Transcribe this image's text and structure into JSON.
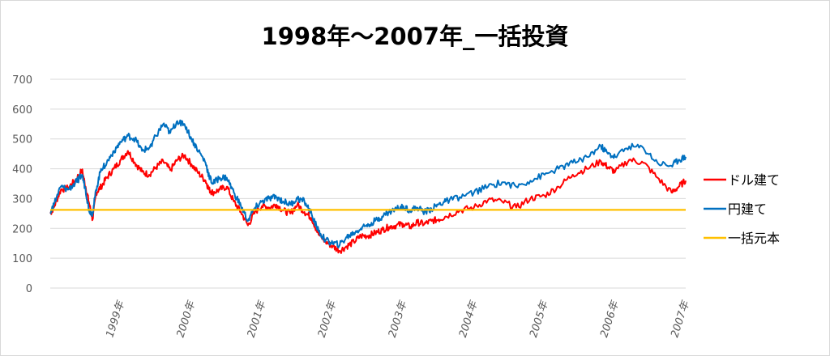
{
  "chart_data": {
    "type": "line",
    "title": "1998年～2007年_一括投資",
    "xlabel": "",
    "ylabel": "",
    "ylim": [
      0,
      700
    ],
    "yticks": [
      0,
      100,
      200,
      300,
      400,
      500,
      600,
      700
    ],
    "xlim": [
      1998.0,
      2007.0
    ],
    "x_tick_labels": [
      {
        "x": 1999.0,
        "label": "1999年"
      },
      {
        "x": 2000.0,
        "label": "2000年"
      },
      {
        "x": 2001.0,
        "label": "2001年"
      },
      {
        "x": 2002.0,
        "label": "2002年"
      },
      {
        "x": 2003.0,
        "label": "2003年"
      },
      {
        "x": 2004.0,
        "label": "2004年"
      },
      {
        "x": 2005.0,
        "label": "2005年"
      },
      {
        "x": 2006.0,
        "label": "2006年"
      },
      {
        "x": 2007.0,
        "label": "2007年"
      }
    ],
    "grid": "horizontal",
    "legend_position": "right",
    "series": [
      {
        "name": "ドル建て",
        "color": "#ff0000",
        "x": [
          1998.0,
          1998.05,
          1998.15,
          1998.25,
          1998.35,
          1998.45,
          1998.5,
          1998.55,
          1998.6,
          1998.65,
          1998.72,
          1998.8,
          1998.9,
          1999.0,
          1999.1,
          1999.2,
          1999.3,
          1999.4,
          1999.5,
          1999.6,
          1999.7,
          1999.8,
          1999.9,
          2000.0,
          2000.1,
          2000.2,
          2000.25,
          2000.3,
          2000.4,
          2000.5,
          2000.6,
          2000.7,
          2000.8,
          2000.9,
          2001.0,
          2001.1,
          2001.2,
          2001.3,
          2001.4,
          2001.5,
          2001.6,
          2001.7,
          2001.8,
          2001.9,
          2002.0,
          2002.1,
          2002.2,
          2002.3,
          2002.4,
          2002.5,
          2002.6,
          2002.7,
          2002.8,
          2002.9,
          2003.0,
          2003.1,
          2003.2,
          2003.3,
          2003.4,
          2003.5,
          2003.6,
          2003.8,
          2004.0,
          2004.2,
          2004.4,
          2004.6,
          2004.8,
          2005.0,
          2005.2,
          2005.4,
          2005.6,
          2005.8,
          2005.9,
          2006.0,
          2006.2,
          2006.4,
          2006.6,
          2006.8,
          2006.9,
          2007.0
        ],
        "values": [
          250,
          270,
          330,
          335,
          360,
          395,
          340,
          285,
          230,
          320,
          340,
          370,
          400,
          430,
          460,
          420,
          390,
          380,
          405,
          425,
          395,
          430,
          445,
          415,
          385,
          360,
          330,
          320,
          330,
          340,
          290,
          255,
          210,
          255,
          275,
          270,
          280,
          260,
          250,
          280,
          255,
          235,
          180,
          155,
          140,
          125,
          140,
          155,
          175,
          175,
          185,
          195,
          205,
          210,
          215,
          205,
          220,
          215,
          225,
          230,
          240,
          260,
          270,
          295,
          290,
          270,
          300,
          310,
          340,
          380,
          400,
          425,
          405,
          390,
          430,
          420,
          370,
          320,
          340,
          360
        ]
      },
      {
        "name": "円建て",
        "color": "#0070c0",
        "x": [
          1998.0,
          1998.05,
          1998.15,
          1998.25,
          1998.35,
          1998.45,
          1998.5,
          1998.55,
          1998.6,
          1998.65,
          1998.72,
          1998.8,
          1998.9,
          1999.0,
          1999.1,
          1999.2,
          1999.3,
          1999.4,
          1999.5,
          1999.6,
          1999.7,
          1999.8,
          1999.9,
          2000.0,
          2000.1,
          2000.2,
          2000.25,
          2000.3,
          2000.4,
          2000.5,
          2000.6,
          2000.7,
          2000.8,
          2000.9,
          2001.0,
          2001.1,
          2001.2,
          2001.3,
          2001.4,
          2001.5,
          2001.6,
          2001.7,
          2001.8,
          2001.9,
          2002.0,
          2002.1,
          2002.2,
          2002.3,
          2002.4,
          2002.5,
          2002.6,
          2002.7,
          2002.8,
          2002.9,
          2003.0,
          2003.1,
          2003.2,
          2003.3,
          2003.4,
          2003.5,
          2003.6,
          2003.8,
          2004.0,
          2004.2,
          2004.4,
          2004.6,
          2004.8,
          2005.0,
          2005.2,
          2005.4,
          2005.6,
          2005.8,
          2005.9,
          2006.0,
          2006.2,
          2006.4,
          2006.6,
          2006.8,
          2006.9,
          2007.0
        ],
        "values": [
          250,
          280,
          340,
          330,
          350,
          380,
          330,
          260,
          250,
          330,
          400,
          420,
          460,
          490,
          510,
          500,
          460,
          470,
          510,
          550,
          520,
          560,
          550,
          500,
          460,
          420,
          375,
          350,
          370,
          370,
          320,
          275,
          225,
          270,
          290,
          300,
          305,
          290,
          280,
          300,
          290,
          250,
          190,
          160,
          150,
          145,
          170,
          185,
          200,
          215,
          225,
          240,
          255,
          265,
          275,
          260,
          270,
          255,
          265,
          280,
          290,
          305,
          320,
          340,
          355,
          340,
          360,
          380,
          400,
          420,
          440,
          475,
          450,
          440,
          475,
          470,
          420,
          410,
          430,
          440
        ]
      },
      {
        "name": "一括元本",
        "color": "#ffc000",
        "x": [
          1998.0,
          2007.0
        ],
        "values": [
          262,
          262
        ]
      }
    ]
  }
}
